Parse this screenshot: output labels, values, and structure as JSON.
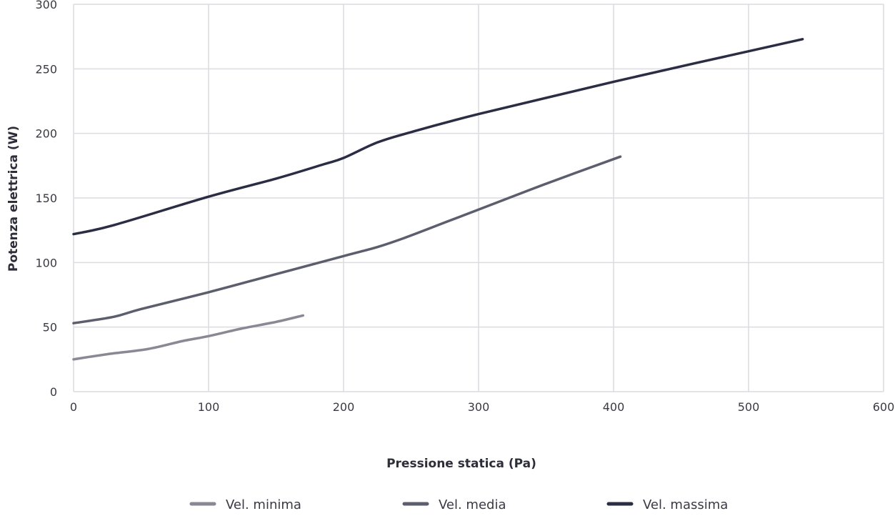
{
  "chart_data": {
    "type": "line",
    "title": "",
    "xlabel": "Pressione statica (Pa)",
    "ylabel": "Potenza elettrica (W)",
    "xlim": [
      0,
      600
    ],
    "ylim": [
      0,
      300
    ],
    "xticks": [
      "0",
      "100",
      "200",
      "300",
      "400",
      "500",
      "600"
    ],
    "yticks": [
      "0",
      "50",
      "100",
      "150",
      "200",
      "250",
      "300"
    ],
    "grid": true,
    "legend_position": "bottom",
    "series": [
      {
        "name": "Vel. minima",
        "color": "#8a8894",
        "x": [
          0,
          25,
          55,
          80,
          100,
          125,
          150,
          170
        ],
        "y": [
          25,
          29,
          33,
          39,
          43,
          49,
          54,
          59
        ]
      },
      {
        "name": "Vel. media",
        "color": "#5c5e6e",
        "x": [
          0,
          30,
          50,
          100,
          150,
          200,
          225,
          245,
          275,
          300,
          350,
          405
        ],
        "y": [
          53,
          58,
          64,
          77,
          91,
          105,
          112,
          119,
          131,
          141,
          161,
          182
        ]
      },
      {
        "name": "Vel. massima",
        "color": "#2b2d45",
        "x": [
          0,
          30,
          100,
          150,
          185,
          200,
          225,
          250,
          300,
          400,
          540
        ],
        "y": [
          122,
          129,
          151,
          165,
          176,
          181,
          193,
          201,
          215,
          240,
          273
        ]
      }
    ]
  }
}
